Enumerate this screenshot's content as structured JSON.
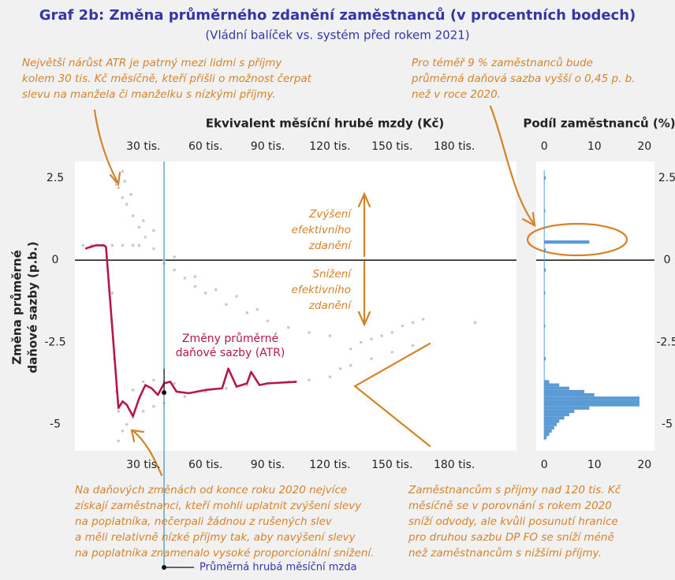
{
  "chart_data": [
    {
      "type": "scatter",
      "title": "Graf 2b: Změna průměrného zdanění zaměstnanců (v procentních bodech)",
      "subtitle": "(Vládní balíček vs. systém před rokem 2021)",
      "xlabel": "Ekvivalent měsíční hrubé mzdy (Kč)",
      "ylabel": [
        "Změna průměrné",
        "daňové sazby (p.b.)"
      ],
      "xlim": [
        -3,
        210
      ],
      "ylim": [
        -5.8,
        3
      ],
      "xticks": [
        {
          "value": 30,
          "label": "30 tis."
        },
        {
          "value": 60,
          "label": "60 tis."
        },
        {
          "value": 90,
          "label": "90 tis."
        },
        {
          "value": 120,
          "label": "120 tis."
        },
        {
          "value": 150,
          "label": "150 tis."
        },
        {
          "value": 180,
          "label": "180 tis."
        }
      ],
      "yticks": [
        2.5,
        0,
        -2.5,
        -5
      ],
      "points": {
        "color": "#c9c9c9",
        "x": [
          1,
          5,
          10,
          15,
          20,
          25,
          28,
          18,
          20,
          22,
          25,
          28,
          31,
          35,
          40,
          45,
          50,
          55,
          60,
          70,
          80,
          90,
          100,
          110,
          120,
          20,
          17,
          21,
          24,
          30,
          35,
          40,
          45,
          55,
          65,
          75,
          85,
          130,
          135,
          140,
          145,
          150,
          155,
          160,
          165,
          190,
          18,
          20,
          22,
          25,
          30,
          35,
          40,
          50,
          60,
          70,
          80,
          90,
          100,
          110,
          120,
          18,
          20,
          25,
          30,
          35,
          40,
          45,
          125,
          130,
          140,
          150,
          160,
          15,
          15,
          16,
          17
        ],
        "y": [
          0.45,
          0.45,
          0.45,
          0.45,
          0.45,
          0.45,
          0.45,
          2.2,
          1.9,
          1.7,
          1.35,
          1.0,
          0.7,
          0.35,
          0,
          -0.3,
          -0.55,
          -0.8,
          -1.0,
          -1.35,
          -1.6,
          -1.85,
          -2.05,
          -2.2,
          -2.3,
          2.7,
          2.3,
          2.4,
          2.0,
          1.2,
          0.9,
          -0.1,
          0.1,
          -0.5,
          -0.9,
          -1.1,
          -1.5,
          -2.7,
          -2.5,
          -2.4,
          -2.3,
          -2.2,
          -2.0,
          -1.9,
          -1.8,
          -1.9,
          -5.5,
          -5.2,
          -5.0,
          -4.8,
          -4.6,
          -4.45,
          -4.35,
          -4.15,
          -4.0,
          -3.9,
          -3.8,
          -3.75,
          -3.7,
          -3.65,
          -3.55,
          -4.6,
          -4.3,
          -3.95,
          -3.7,
          -3.65,
          -3.7,
          -3.75,
          -3.3,
          -3.2,
          -3.0,
          -2.8,
          -2.6,
          -1,
          -2,
          -3,
          -4
        ]
      },
      "line": {
        "name": "Změny průměrné daňové sazby (ATR)",
        "color": "#b5174b",
        "x": [
          2,
          7,
          11,
          12,
          18,
          20,
          22,
          25,
          28,
          31,
          34,
          37,
          40,
          43,
          46,
          52,
          60,
          68,
          71,
          75,
          80,
          82,
          86,
          90,
          104
        ],
        "y": [
          0.35,
          0.45,
          0.45,
          0.4,
          -4.5,
          -4.3,
          -4.4,
          -4.75,
          -4.2,
          -3.8,
          -3.9,
          -4.1,
          -3.75,
          -3.7,
          -4.0,
          -4.05,
          -3.95,
          -3.9,
          -3.3,
          -3.85,
          -3.75,
          -3.4,
          -3.8,
          -3.75,
          -3.7
        ]
      },
      "mean_wage": {
        "name": "Průměrná hrubá měsíční mzda",
        "x": 40,
        "y": -4.03,
        "color": "#3a8fc0"
      },
      "annotations": [
        {
          "lines": [
            "Největší nárůst ATR je patrný mezi lidmi s příjmy",
            "kolem 30 tis. Kč měsíčně, kteří přišli o možnost čerpat",
            "slevu na manžela či manželku s nízkými příjmy."
          ]
        },
        {
          "lines": [
            "Pro téměř 9 % zaměstnanců bude",
            "průměrná daňová sazba vyšší o 0,45 p. b.",
            "než v roce 2020."
          ]
        },
        {
          "lines": [
            "Zvýšení",
            "efektivního",
            "zdanění"
          ]
        },
        {
          "lines": [
            "Snížení",
            "efektivního",
            "zdanění"
          ]
        },
        {
          "lines": [
            "Na daňových změnách od konce roku 2020 nejvíce",
            "získají zaměstnanci, kteří mohli uplatnit zvýšení slevy",
            "na poplatníka, nečerpali žádnou z rušených slev",
            "a měli relativně nízké příjmy tak, aby navýšení slevy",
            "na poplatníka znamenalo vysoké proporcionální snížení."
          ]
        },
        {
          "lines": [
            "Zaměstnancům s příjmy nad 120 tis. Kč",
            "měsíčně se v porovnání s rokem 2020",
            "sníží odvody, ale kvůli posunutí hranice",
            "pro druhou sazbu DP FO se sníží méně",
            "než zaměstnancům s nižšími příjmy."
          ]
        }
      ]
    },
    {
      "type": "barh",
      "xlabel": "Podíl zaměstnanců (%)",
      "xlim": [
        -1.6,
        22
      ],
      "ylim": [
        -5.8,
        3
      ],
      "xticks": [
        0,
        10,
        20
      ],
      "yticks": [
        2.5,
        0,
        -2.5,
        -5
      ],
      "color": "#5b9bd5",
      "y": [
        2.5,
        1.5,
        0.55,
        0.3,
        -0.3,
        -1,
        -2,
        -3,
        -3.7,
        -3.8,
        -3.9,
        -4.0,
        -4.1,
        -4.2,
        -4.3,
        -4.4,
        -4.5,
        -4.6,
        -4.7,
        -4.8,
        -4.9,
        -5.0,
        -5.1,
        -5.2,
        -5.3,
        -5.4
      ],
      "values": [
        0.3,
        0.2,
        9,
        0.3,
        0.3,
        0.2,
        0.2,
        0.3,
        1,
        3,
        5,
        8,
        10,
        19,
        19,
        19,
        9,
        6,
        5,
        4,
        3,
        2.5,
        2,
        1.5,
        1,
        0.5
      ]
    }
  ]
}
